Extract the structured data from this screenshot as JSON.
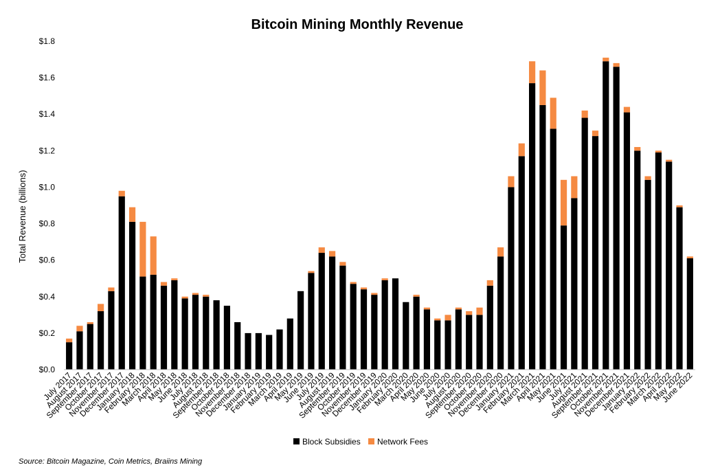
{
  "chart_data": {
    "type": "bar",
    "stacked": true,
    "title": "Bitcoin Mining Monthly Revenue",
    "ylabel": "Total Revenue (billions)",
    "xlabel": "",
    "ylim": [
      0,
      1.8
    ],
    "yticks": [
      0,
      0.2,
      0.4,
      0.6,
      0.8,
      1.0,
      1.2,
      1.4,
      1.6,
      1.8
    ],
    "ytick_labels": [
      "$0.0",
      "$0.2",
      "$0.4",
      "$0.6",
      "$0.8",
      "$1.0",
      "$1.2",
      "$1.4",
      "$1.6",
      "$1.8"
    ],
    "grid": false,
    "legend_position": "bottom",
    "categories": [
      "July 2017",
      "August 2017",
      "September 2017",
      "October 2017",
      "November 2017",
      "December 2017",
      "January 2018",
      "February 2018",
      "March 2018",
      "April 2018",
      "May 2018",
      "June 2018",
      "July 2018",
      "August 2018",
      "September 2018",
      "October 2018",
      "November 2018",
      "December 2018",
      "January 2019",
      "February 2019",
      "March 2019",
      "April 2019",
      "May 2019",
      "June 2019",
      "July 2019",
      "August 2019",
      "September 2019",
      "October 2019",
      "November 2019",
      "December 2019",
      "January 2020",
      "February 2020",
      "March 2020",
      "April 2020",
      "May 2020",
      "June 2020",
      "July 2020",
      "August 2020",
      "September 2020",
      "October 2020",
      "November 2020",
      "December 2020",
      "January 2021",
      "February 2021",
      "March 2021",
      "April 2021",
      "May 2021",
      "June 2021",
      "July 2021",
      "August 2021",
      "September 2021",
      "October 2021",
      "November 2021",
      "December 2021",
      "January 2022",
      "February 2022",
      "March 2022",
      "April 2022",
      "May 2022",
      "June 2022"
    ],
    "x_labels_shown": [
      "July 2017",
      "August 2017",
      "September 2017",
      "October 2017",
      "November 2017",
      "December 2017",
      "January 2018",
      "February 2018",
      "March 2018",
      "April 2018",
      "May 2018",
      "June 2018",
      "July 2018",
      "August 2018",
      "September 2018",
      "October 2018",
      "November 2018",
      "December 2018",
      "January 2019",
      "February 2019",
      "March 2019",
      "April 2019",
      "May 2019",
      "June 2019",
      "July 2019",
      "August 2019",
      "September 2019",
      "October 2019",
      "November 2019",
      "December 2019",
      "January 2020",
      "February 2020",
      "March 2020",
      "April 2020",
      "May 2020",
      "June 2020",
      "July 2020",
      "August 2020",
      "September 2020",
      "October 2020",
      "November 2020",
      "December 2020",
      "January 2021",
      "February 2021",
      "March 2021",
      "April 2021",
      "May 2021",
      "June 2021",
      "July 2021",
      "August 2021",
      "September 2021",
      "October 2021",
      "November 2021",
      "December 2021",
      "January 2022",
      "February 2022",
      "March 2022",
      "April 2022",
      "May 2022",
      "June 2022"
    ],
    "series": [
      {
        "name": "Block Subsidies",
        "color": "#000000",
        "values": [
          0.15,
          0.21,
          0.25,
          0.32,
          0.43,
          0.95,
          0.81,
          0.51,
          0.52,
          0.46,
          0.49,
          0.39,
          0.41,
          0.4,
          0.38,
          0.35,
          0.26,
          0.2,
          0.2,
          0.19,
          0.22,
          0.28,
          0.43,
          0.53,
          0.64,
          0.62,
          0.57,
          0.47,
          0.44,
          0.41,
          0.49,
          0.5,
          0.37,
          0.4,
          0.33,
          0.27,
          0.27,
          0.33,
          0.3,
          0.3,
          0.46,
          0.62,
          1.0,
          1.17,
          1.57,
          1.45,
          1.32,
          0.79,
          0.94,
          1.38,
          1.28,
          1.69,
          1.66,
          1.41,
          1.2,
          1.04,
          1.19,
          1.14,
          0.89,
          0.61
        ]
      },
      {
        "name": "Network Fees",
        "color": "#f58a42",
        "values": [
          0.02,
          0.03,
          0.01,
          0.04,
          0.02,
          0.03,
          0.08,
          0.3,
          0.21,
          0.02,
          0.01,
          0.01,
          0.01,
          0.01,
          0.0,
          0.0,
          0.0,
          0.0,
          0.0,
          0.0,
          0.0,
          0.0,
          0.0,
          0.01,
          0.03,
          0.03,
          0.02,
          0.01,
          0.01,
          0.01,
          0.01,
          0.0,
          0.0,
          0.01,
          0.01,
          0.01,
          0.03,
          0.01,
          0.02,
          0.04,
          0.03,
          0.05,
          0.06,
          0.07,
          0.12,
          0.19,
          0.17,
          0.25,
          0.12,
          0.04,
          0.03,
          0.02,
          0.02,
          0.03,
          0.02,
          0.02,
          0.01,
          0.01,
          0.01,
          0.01
        ]
      }
    ],
    "source": "Source: Bitcoin Magazine, Coin Metrics, Braiins Mining"
  }
}
